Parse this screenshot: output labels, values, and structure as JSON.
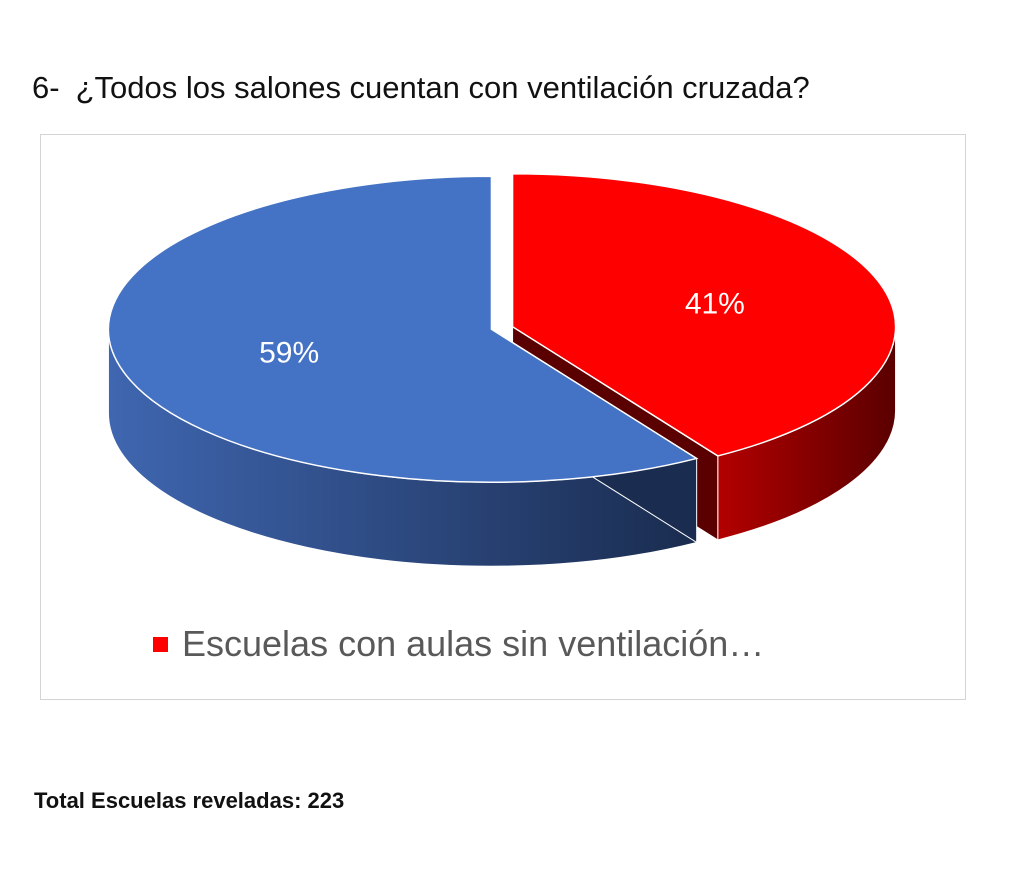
{
  "question": {
    "number": "6-",
    "text": "¿Todos los salones cuentan con ventilación cruzada?"
  },
  "chart_data": {
    "type": "pie",
    "style": "3d-exploded",
    "slices": [
      {
        "label": "Escuelas con aulas sin ventilación...",
        "value": 41,
        "display": "41%",
        "color": "#ff0000",
        "side_color_light": "#b30000",
        "side_color_dark": "#5a0000"
      },
      {
        "label": "",
        "value": 59,
        "display": "59%",
        "color": "#4472c4",
        "side_color_light": "#3f66b0",
        "side_color_dark": "#1a2c4f"
      }
    ],
    "legend": {
      "position": "bottom",
      "entries": [
        {
          "label": "Escuelas con aulas sin ventilación…",
          "color": "#ff0000"
        }
      ]
    }
  },
  "footer": {
    "text": "Total Escuelas reveladas: 223"
  }
}
